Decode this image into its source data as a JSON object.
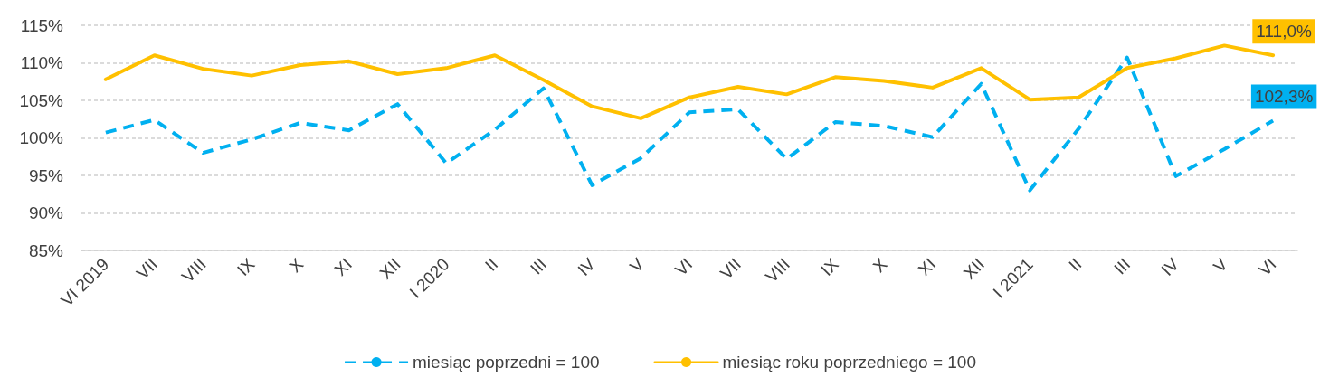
{
  "chart_data": {
    "type": "line",
    "categories": [
      "VI 2019",
      "VII",
      "VIII",
      "IX",
      "X",
      "XI",
      "XII",
      "I 2020",
      "II",
      "III",
      "IV",
      "V",
      "VI",
      "VII",
      "VIII",
      "IX",
      "X",
      "XI",
      "XII",
      "I 2021",
      "II",
      "III",
      "IV",
      "V",
      "VI"
    ],
    "series": [
      {
        "name": "miesiąc poprzedni = 100",
        "color": "#00b0f0",
        "line_style": "dashed",
        "values": [
          100.7,
          102.4,
          98.0,
          99.8,
          102.0,
          101.0,
          104.5,
          96.6,
          101.1,
          106.6,
          93.7,
          97.3,
          103.4,
          103.8,
          97.2,
          102.1,
          101.6,
          100.1,
          107.2,
          93.0,
          101.2,
          110.7,
          94.9,
          98.5,
          102.3
        ],
        "value_labels": [
          null,
          null,
          null,
          null,
          null,
          null,
          null,
          null,
          null,
          null,
          null,
          null,
          null,
          null,
          null,
          null,
          null,
          null,
          null,
          null,
          null,
          null,
          null,
          null,
          "102,3%"
        ]
      },
      {
        "name": "miesiąc roku poprzedniego = 100",
        "color": "#ffc000",
        "line_style": "solid",
        "values": [
          107.8,
          111.0,
          109.2,
          108.3,
          109.7,
          110.2,
          108.5,
          109.3,
          111.0,
          107.7,
          104.2,
          102.6,
          105.4,
          106.8,
          105.8,
          108.1,
          107.6,
          106.7,
          109.3,
          105.1,
          105.4,
          109.3,
          110.6,
          112.3,
          111.0
        ],
        "value_labels": [
          null,
          null,
          null,
          null,
          null,
          null,
          null,
          null,
          null,
          null,
          null,
          null,
          null,
          null,
          null,
          null,
          null,
          null,
          null,
          null,
          null,
          null,
          null,
          null,
          "111,0%"
        ]
      }
    ],
    "ylim": [
      85,
      115
    ],
    "yticks": [
      {
        "value": 85,
        "label": "85%"
      },
      {
        "value": 90,
        "label": "90%"
      },
      {
        "value": 95,
        "label": "95%"
      },
      {
        "value": 100,
        "label": "100%"
      },
      {
        "value": 105,
        "label": "105%"
      },
      {
        "value": 110,
        "label": "110%"
      },
      {
        "value": 115,
        "label": "115%"
      }
    ],
    "grid": "y",
    "legend": "bottom",
    "marker": "none"
  }
}
